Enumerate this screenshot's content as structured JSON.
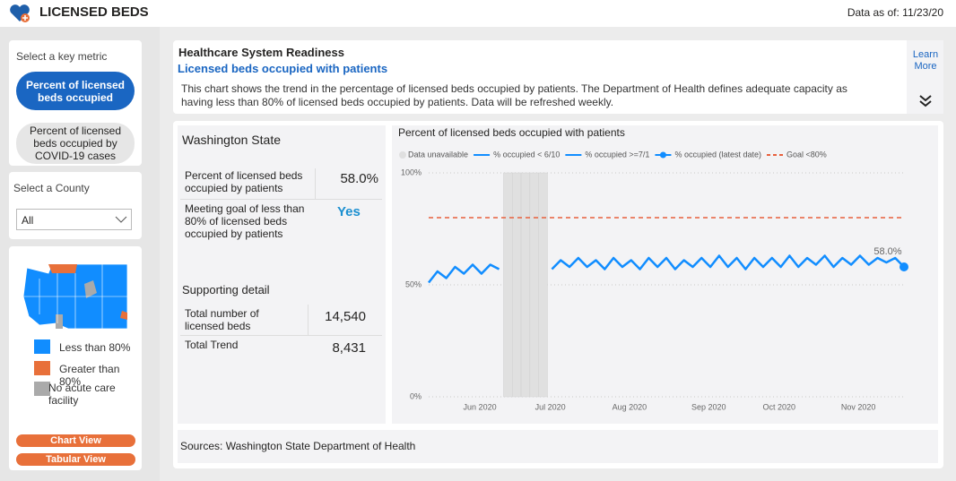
{
  "header": {
    "title": "LICENSED BEDS",
    "data_as_of": "Data as of: 11/23/20"
  },
  "sidebar": {
    "metric_label": "Select a key metric",
    "metrics": [
      "Percent of licensed beds occupied",
      "Percent of licensed beds occupied by COVID-19 cases"
    ],
    "county_label": "Select a County",
    "county_value": "All",
    "map_legend": [
      "Less than 80%",
      "Greater than 80%",
      "No acute care facility"
    ],
    "buttons": [
      "Chart View",
      "Tabular View"
    ]
  },
  "info": {
    "title": "Healthcare System Readiness",
    "subtitle": "Licensed beds occupied with patients",
    "description": "This chart shows the trend in the percentage of licensed beds occupied by patients. The Department of Health defines adequate capacity as having less than 80% of licensed beds occupied by patients. Data will be refreshed weekly.",
    "learn_more": "Learn More"
  },
  "summary": {
    "region": "Washington State",
    "rows": [
      [
        "Percent of licensed beds occupied by patients",
        "58.0%"
      ],
      [
        "Meeting goal of less than 80% of licensed beds occupied by patients",
        "Yes"
      ]
    ],
    "detail_title": "Supporting detail",
    "detail_rows": [
      [
        "Total number of licensed beds",
        "14,540"
      ],
      [
        "Total Trend",
        "8,431"
      ]
    ]
  },
  "sources": "Sources: Washington State Department of Health",
  "chart_data": {
    "type": "line",
    "title": "Percent of licensed beds occupied with patients",
    "categories": [
      null,
      null,
      null,
      null,
      null,
      "Jun 2020",
      null,
      null,
      null,
      null,
      null,
      null,
      null,
      "Jul 2020",
      null,
      null,
      null,
      null,
      null,
      null,
      null,
      null,
      "Aug 2020",
      null,
      null,
      null,
      null,
      null,
      null,
      null,
      null,
      "Sep 2020",
      null,
      null,
      null,
      null,
      null,
      null,
      null,
      "Oct 2020",
      null,
      null,
      null,
      null,
      null,
      null,
      null,
      null,
      "Nov 2020",
      null,
      null,
      null,
      null,
      null,
      null
    ],
    "series": [
      {
        "name": "Data unavailable",
        "color": "#e0e0e0",
        "mark": "band",
        "values": [
          null,
          null,
          null,
          null,
          null,
          null,
          null,
          null,
          null,
          100,
          100,
          100,
          100,
          100,
          null,
          null,
          null,
          null,
          null,
          null,
          null,
          null,
          null,
          null,
          null,
          null,
          null,
          null,
          null,
          null,
          null,
          null,
          null,
          null,
          null,
          null,
          null,
          null,
          null,
          null,
          null,
          null,
          null,
          null,
          null,
          null,
          null,
          null,
          null,
          null,
          null,
          null,
          null,
          null,
          null
        ]
      },
      {
        "name": "% occupied < 6/10",
        "color": "#118dff",
        "mark": "line",
        "values": [
          51,
          56,
          53,
          58,
          55,
          59,
          55,
          59,
          57,
          null,
          null,
          null,
          null,
          null,
          null,
          null,
          null,
          null,
          null,
          null,
          null,
          null,
          null,
          null,
          null,
          null,
          null,
          null,
          null,
          null,
          null,
          null,
          null,
          null,
          null,
          null,
          null,
          null,
          null,
          null,
          null,
          null,
          null,
          null,
          null,
          null,
          null,
          null,
          null,
          null,
          null,
          null,
          null,
          null,
          null
        ]
      },
      {
        "name": "% occupied >=7/1",
        "color": "#118dff",
        "mark": "line",
        "values": [
          null,
          null,
          null,
          null,
          null,
          null,
          null,
          null,
          null,
          null,
          null,
          null,
          null,
          null,
          57,
          61,
          58,
          62,
          58,
          61,
          57,
          62,
          58,
          61,
          57,
          62,
          58,
          62,
          57,
          61,
          58,
          62,
          58,
          63,
          58,
          62,
          57,
          62,
          58,
          62,
          58,
          63,
          58,
          62,
          59,
          63,
          58,
          62,
          59,
          63,
          59,
          62,
          60,
          62,
          58
        ]
      },
      {
        "name": "% occupied (latest date)",
        "color": "#118dff",
        "mark": "point",
        "values": [
          null,
          null,
          null,
          null,
          null,
          null,
          null,
          null,
          null,
          null,
          null,
          null,
          null,
          null,
          null,
          null,
          null,
          null,
          null,
          null,
          null,
          null,
          null,
          null,
          null,
          null,
          null,
          null,
          null,
          null,
          null,
          null,
          null,
          null,
          null,
          null,
          null,
          null,
          null,
          null,
          null,
          null,
          null,
          null,
          null,
          null,
          null,
          null,
          null,
          null,
          null,
          null,
          null,
          null,
          58
        ],
        "value_labels": [
          null,
          null,
          null,
          null,
          null,
          null,
          null,
          null,
          null,
          null,
          null,
          null,
          null,
          null,
          null,
          null,
          null,
          null,
          null,
          null,
          null,
          null,
          null,
          null,
          null,
          null,
          null,
          null,
          null,
          null,
          null,
          null,
          null,
          null,
          null,
          null,
          null,
          null,
          null,
          null,
          null,
          null,
          null,
          null,
          null,
          null,
          null,
          null,
          null,
          null,
          null,
          null,
          null,
          null,
          "58.0%"
        ]
      }
    ],
    "goal": {
      "name": "Goal <80%",
      "color": "#e8603c",
      "value": 80
    },
    "ylim": [
      0,
      100
    ],
    "yticks": [
      {
        "value": 0,
        "label": "0%"
      },
      {
        "value": 50,
        "label": "50%"
      },
      {
        "value": 100,
        "label": "100%"
      }
    ],
    "grid": true
  }
}
